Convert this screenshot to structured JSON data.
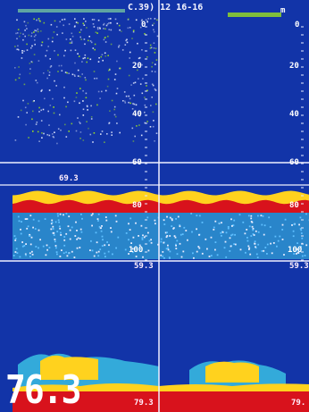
{
  "header": {
    "title": "C.39) 12 16-16",
    "top_right": "m"
  },
  "left_panel": {
    "depth_marks": [
      "0",
      "20",
      "40",
      "60",
      "80",
      "100"
    ],
    "gate_top_readout": "69.3",
    "gate_bottom_readout": "59.3",
    "bottom_readout": "79.3"
  },
  "right_panel": {
    "depth_marks": [
      "0",
      "20",
      "40",
      "60",
      "80",
      "100"
    ],
    "gate_bottom_readout": "59.3",
    "bottom_readout": "79."
  },
  "current_depth": "76.3",
  "colors": {
    "background": "#1234a8",
    "seabed": "#d8121c",
    "echo_strong": "#ffd21e",
    "echo_medium": "#3cc8e6",
    "echo_weak": "#e6ecff"
  },
  "color_scale": [
    "#ffffff",
    "#bfe3ff",
    "#5fc0ff",
    "#2a6fe0",
    "#1a3fc0",
    "#22b14c",
    "#9be11f",
    "#ffe01a",
    "#ff9a12",
    "#ff4a12",
    "#e0121c",
    "#ff30c0"
  ]
}
